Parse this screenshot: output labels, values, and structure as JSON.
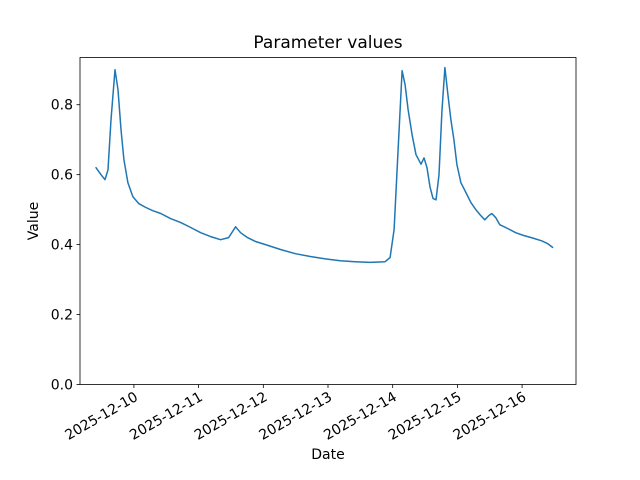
{
  "figure": {
    "background": "#ffffff"
  },
  "chart_data": {
    "type": "line",
    "title": "Parameter values",
    "xlabel": "Date",
    "ylabel": "Value",
    "line_color": "#1f77b4",
    "axis_color": "#000000",
    "grid": false,
    "legend": false,
    "ylim": [
      0.0,
      0.935
    ],
    "xlim": [
      "2025-12-09 04:00",
      "2025-12-16 20:00"
    ],
    "y_ticks": [
      0.0,
      0.2,
      0.4,
      0.6,
      0.8
    ],
    "x_ticks": [
      {
        "label": "2025-12-10",
        "t": "2025-12-10 00:00"
      },
      {
        "label": "2025-12-11",
        "t": "2025-12-11 00:00"
      },
      {
        "label": "2025-12-12",
        "t": "2025-12-12 00:00"
      },
      {
        "label": "2025-12-13",
        "t": "2025-12-13 00:00"
      },
      {
        "label": "2025-12-14",
        "t": "2025-12-14 00:00"
      },
      {
        "label": "2025-12-15",
        "t": "2025-12-15 00:00"
      },
      {
        "label": "2025-12-16",
        "t": "2025-12-16 00:00"
      }
    ],
    "series": [
      {
        "name": "parameter-values",
        "x": [
          "2025-12-09 09:57",
          "2025-12-09 11:48",
          "2025-12-09 13:17",
          "2025-12-09 14:23",
          "2025-12-09 15:30",
          "2025-12-09 16:58",
          "2025-12-09 18:05",
          "2025-12-09 19:12",
          "2025-12-09 20:18",
          "2025-12-09 21:47",
          "2025-12-09 23:38",
          "2025-12-10 01:51",
          "2025-12-10 04:26",
          "2025-12-10 07:01",
          "2025-12-10 09:59",
          "2025-12-10 13:41",
          "2025-12-10 17:23",
          "2025-12-10 21:05",
          "2025-12-11 00:47",
          "2025-12-11 04:28",
          "2025-12-11 08:10",
          "2025-12-11 11:08",
          "2025-12-11 13:43",
          "2025-12-11 15:34",
          "2025-12-11 18:09",
          "2025-12-11 21:07",
          "2025-12-12 00:49",
          "2025-12-12 06:22",
          "2025-12-12 11:54",
          "2025-12-12 17:27",
          "2025-12-12 23:00",
          "2025-12-13 04:33",
          "2025-12-13 10:06",
          "2025-12-13 15:38",
          "2025-12-13 21:11",
          "2025-12-13 23:02",
          "2025-12-14 00:31",
          "2025-12-14 02:00",
          "2025-12-14 03:29",
          "2025-12-14 04:35",
          "2025-12-14 05:42",
          "2025-12-14 07:11",
          "2025-12-14 08:39",
          "2025-12-14 10:30",
          "2025-12-14 11:37",
          "2025-12-14 12:43",
          "2025-12-14 13:50",
          "2025-12-14 14:56",
          "2025-12-14 16:03",
          "2025-12-14 17:10",
          "2025-12-14 18:16",
          "2025-12-14 19:23",
          "2025-12-14 20:29",
          "2025-12-14 21:36",
          "2025-12-14 22:42",
          "2025-12-14 23:49",
          "2025-12-15 01:18",
          "2025-12-15 03:09",
          "2025-12-15 05:00",
          "2025-12-15 06:50",
          "2025-12-15 08:41",
          "2025-12-15 10:10",
          "2025-12-15 11:39",
          "2025-12-15 12:45",
          "2025-12-15 14:14",
          "2025-12-15 15:43",
          "2025-12-15 18:40",
          "2025-12-15 21:38",
          "2025-12-16 00:35",
          "2025-12-16 03:55",
          "2025-12-16 07:14",
          "2025-12-16 09:28",
          "2025-12-16 11:19"
        ],
        "y": [
          0.62,
          0.6,
          0.586,
          0.614,
          0.757,
          0.9,
          0.843,
          0.729,
          0.643,
          0.577,
          0.537,
          0.517,
          0.506,
          0.497,
          0.489,
          0.474,
          0.463,
          0.449,
          0.434,
          0.423,
          0.414,
          0.42,
          0.451,
          0.434,
          0.42,
          0.409,
          0.4,
          0.386,
          0.374,
          0.366,
          0.359,
          0.354,
          0.351,
          0.349,
          0.351,
          0.363,
          0.443,
          0.671,
          0.897,
          0.857,
          0.786,
          0.714,
          0.657,
          0.63,
          0.648,
          0.62,
          0.565,
          0.532,
          0.528,
          0.6,
          0.78,
          0.906,
          0.829,
          0.757,
          0.7,
          0.629,
          0.577,
          0.549,
          0.52,
          0.5,
          0.483,
          0.471,
          0.483,
          0.489,
          0.477,
          0.457,
          0.446,
          0.434,
          0.426,
          0.419,
          0.411,
          0.403,
          0.392
        ]
      }
    ]
  }
}
